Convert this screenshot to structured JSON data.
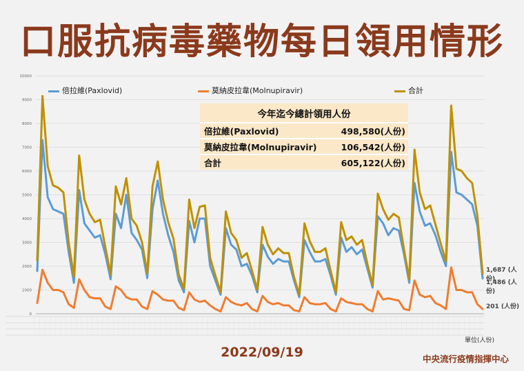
{
  "title": "口服抗病毒藥物每日領用情形",
  "date": "2022/09/19",
  "org": "中央流行疫情指揮中心",
  "unit": "單位(人份)",
  "legend": [
    {
      "name": "倍拉維(Paxlovid)",
      "color": "#5b9bd5"
    },
    {
      "name": "莫納皮拉韋(Molnupiravir)",
      "color": "#ed7d31"
    },
    {
      "name": "合計",
      "color": "#bf9000"
    }
  ],
  "summary": {
    "header": "今年迄今總計領用人份",
    "rows": [
      {
        "name": "倍拉維(Paxlovid)",
        "value": "498,580(人份)"
      },
      {
        "name": "莫納皮拉韋(Molnupiravir)",
        "value": "106,542(人份)"
      },
      {
        "name": "合計",
        "value": "605,122(人份)"
      }
    ]
  },
  "end_labels": {
    "total": "1,687 (人份)",
    "pax": "1,486 (人份)",
    "mol": "201 (人份)"
  },
  "chart_data": {
    "type": "line",
    "ylim": [
      0,
      10000
    ],
    "yticks": [
      0,
      1000,
      2000,
      3000,
      4000,
      5000,
      6000,
      7000,
      8000,
      9000,
      10000
    ],
    "grid": true,
    "legend_position": "top",
    "series": [
      {
        "name": "倍拉維(Paxlovid)",
        "color": "#5b9bd5",
        "values": [
          1800,
          7300,
          4900,
          4400,
          4300,
          4200,
          2600,
          1300,
          5200,
          3800,
          3500,
          3200,
          3300,
          2500,
          1450,
          4200,
          3600,
          5000,
          3400,
          3100,
          2700,
          1500,
          4400,
          5600,
          4200,
          3300,
          2600,
          1400,
          900,
          3900,
          3000,
          4000,
          4000,
          2000,
          1400,
          800,
          3600,
          2900,
          2700,
          2000,
          2100,
          1600,
          900,
          2900,
          2400,
          2100,
          2300,
          2200,
          2200,
          1400,
          700,
          3100,
          2600,
          2200,
          2200,
          2300,
          1600,
          800,
          3200,
          2600,
          2800,
          2500,
          2700,
          1900,
          1100,
          4100,
          3800,
          3300,
          3600,
          3500,
          2500,
          1300,
          5500,
          4300,
          3700,
          3800,
          3300,
          2600,
          2000,
          6800,
          5100,
          5000,
          4800,
          4600,
          3700,
          1486
        ]
      },
      {
        "name": "莫納皮拉韋(Molnupiravir)",
        "color": "#ed7d31",
        "values": [
          450,
          1850,
          1300,
          1000,
          1000,
          900,
          400,
          250,
          1450,
          1000,
          700,
          650,
          650,
          300,
          200,
          1150,
          1000,
          700,
          600,
          600,
          300,
          200,
          950,
          800,
          600,
          550,
          550,
          250,
          150,
          900,
          600,
          500,
          550,
          350,
          200,
          100,
          700,
          500,
          400,
          350,
          450,
          200,
          100,
          750,
          500,
          400,
          450,
          350,
          350,
          150,
          100,
          700,
          450,
          400,
          400,
          450,
          200,
          100,
          650,
          500,
          450,
          400,
          400,
          200,
          100,
          950,
          600,
          650,
          600,
          550,
          200,
          150,
          1400,
          800,
          700,
          750,
          450,
          350,
          200,
          1950,
          1000,
          1000,
          900,
          900,
          400,
          201
        ]
      },
      {
        "name": "合計",
        "color": "#bf9000",
        "values": [
          2250,
          9150,
          6200,
          5400,
          5300,
          5100,
          3000,
          1550,
          6650,
          4800,
          4200,
          3850,
          3950,
          2800,
          1650,
          5350,
          4600,
          5700,
          4000,
          3700,
          3000,
          1700,
          5350,
          6400,
          4800,
          3850,
          3150,
          1650,
          1050,
          4800,
          3600,
          4500,
          4550,
          2350,
          1600,
          900,
          4300,
          3400,
          3100,
          2350,
          2550,
          1800,
          1000,
          3650,
          2900,
          2500,
          2750,
          2550,
          2550,
          1550,
          800,
          3800,
          3050,
          2600,
          2600,
          2750,
          1800,
          900,
          3850,
          3100,
          3250,
          2900,
          3100,
          2100,
          1200,
          5050,
          4400,
          3950,
          4200,
          4050,
          2700,
          1450,
          6900,
          5100,
          4400,
          4550,
          3750,
          2950,
          2200,
          8750,
          6100,
          6000,
          5700,
          5500,
          4100,
          1687
        ]
      }
    ]
  }
}
